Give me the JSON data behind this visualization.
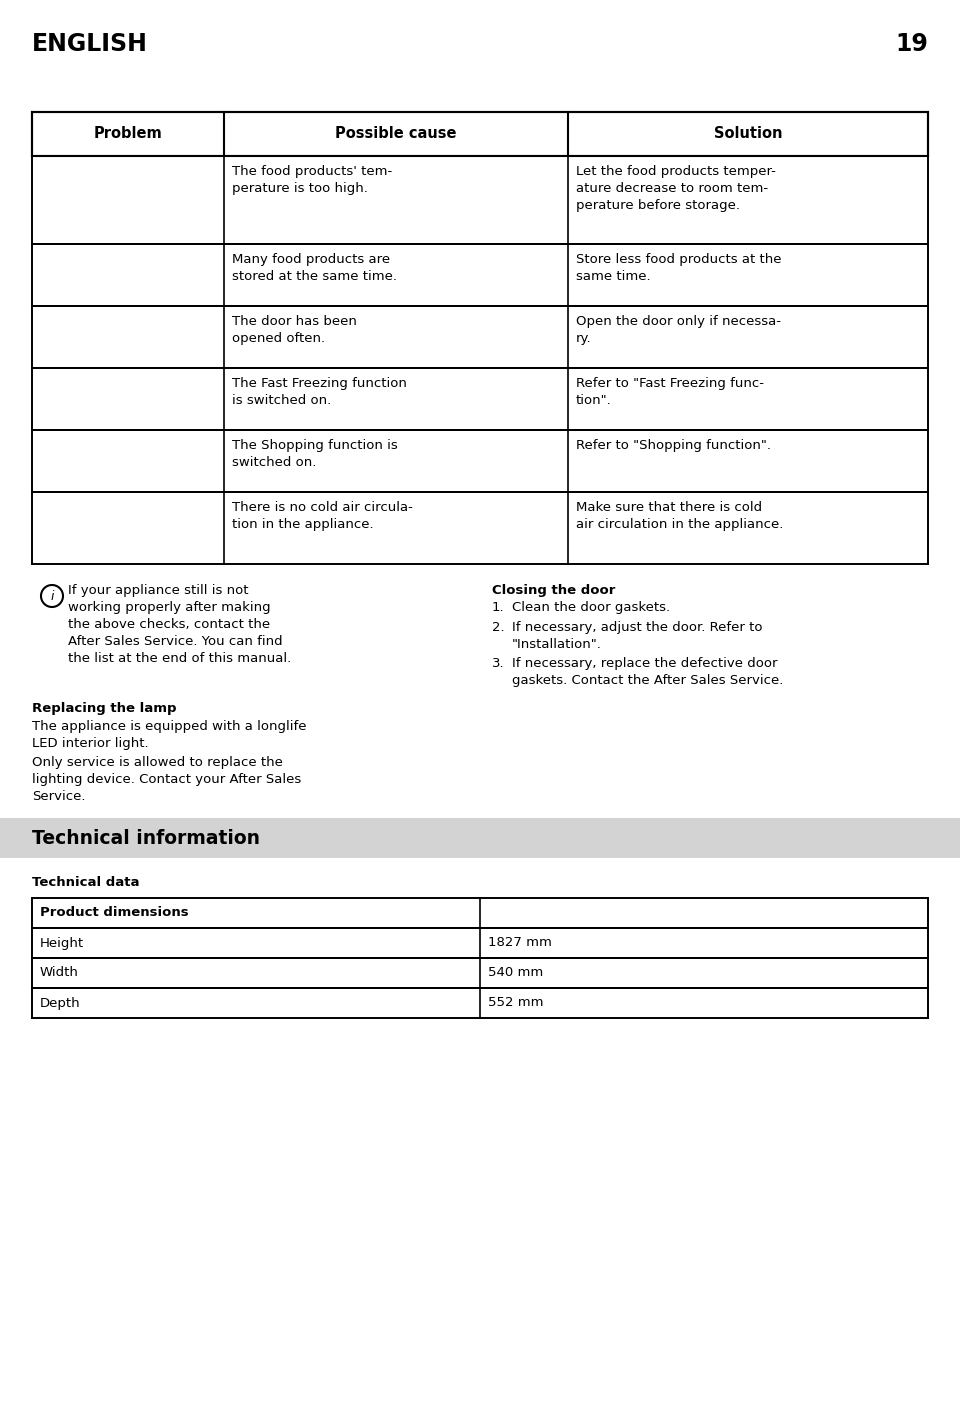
{
  "page_title": "ENGLISH",
  "page_number": "19",
  "table_headers": [
    "Problem",
    "Possible cause",
    "Solution"
  ],
  "table_rows": [
    [
      "",
      "The food products' tem-\nperature is too high.",
      "Let the food products temper-\nature decrease to room tem-\nperature before storage."
    ],
    [
      "",
      "Many food products are\nstored at the same time.",
      "Store less food products at the\nsame time."
    ],
    [
      "",
      "The door has been\nopened often.",
      "Open the door only if necessa-\nry."
    ],
    [
      "",
      "The Fast Freezing function\nis switched on.",
      "Refer to \"Fast Freezing func-\ntion\"."
    ],
    [
      "",
      "The Shopping function is\nswitched on.",
      "Refer to \"Shopping function\"."
    ],
    [
      "",
      "There is no cold air circula-\ntion in the appliance.",
      "Make sure that there is cold\nair circulation in the appliance."
    ]
  ],
  "info_left": "If your appliance still is not\nworking properly after making\nthe above checks, contact the\nAfter Sales Service. You can find\nthe list at the end of this manual.",
  "closing_door_title": "Closing the door",
  "closing_door_items": [
    "Clean the door gaskets.",
    "If necessary, adjust the door. Refer to\n\"Installation\".",
    "If necessary, replace the defective door\ngaskets. Contact the After Sales Service."
  ],
  "replacing_lamp_title": "Replacing the lamp",
  "replacing_lamp_p1": "The appliance is equipped with a longlife\nLED interior light.",
  "replacing_lamp_p2": "Only service is allowed to replace the\nlighting device. Contact your After Sales\nService.",
  "tech_info_title": "Technical information",
  "tech_data_title": "Technical data",
  "tech_prod_dim": "Product dimensions",
  "tech_rows": [
    [
      "Height",
      "1827 mm"
    ],
    [
      "Width",
      "540 mm"
    ],
    [
      "Depth",
      "552 mm"
    ]
  ],
  "bg": "#ffffff",
  "border": "#000000",
  "tech_banner_bg": "#d3d3d3",
  "fs_heading": 17,
  "fs_header": 10.5,
  "fs_body": 9.5,
  "fs_tech_title": 13.5
}
